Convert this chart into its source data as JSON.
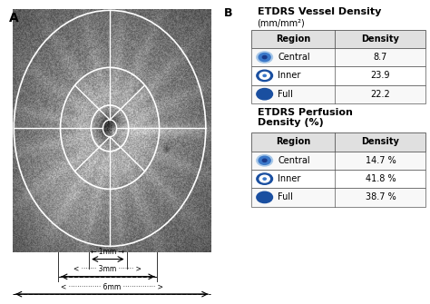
{
  "panel_a_label": "A",
  "panel_b_label": "B",
  "title1": "ETDRS Vessel Density",
  "subtitle1": "(mm/mm²)",
  "table1_headers": [
    "Region",
    "Density"
  ],
  "table1_rows": [
    [
      "Central",
      "8.7"
    ],
    [
      "Inner",
      "23.9"
    ],
    [
      "Full",
      "22.2"
    ]
  ],
  "title2": "ETDRS Perfusion\nDensity (%)",
  "table2_headers": [
    "Region",
    "Density"
  ],
  "table2_rows": [
    [
      "Central",
      "14.7 %"
    ],
    [
      "Inner",
      "41.8 %"
    ],
    [
      "Full",
      "38.7 %"
    ]
  ],
  "bg_color": "#ffffff",
  "arrow_1mm": "← 1mm →",
  "arrow_3mm": "3mm",
  "arrow_6mm": "6mm"
}
